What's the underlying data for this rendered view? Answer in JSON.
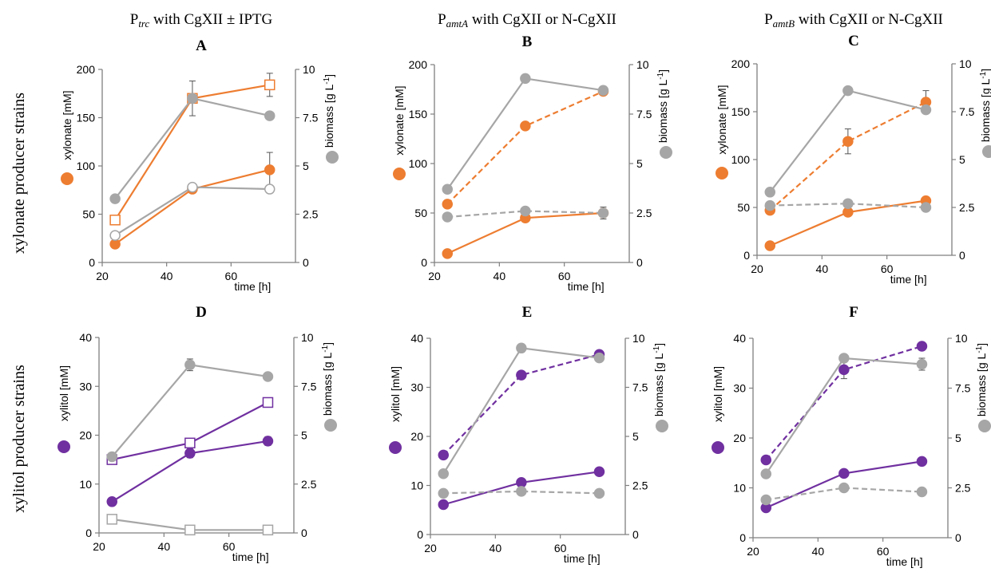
{
  "row_labels": [
    "xylonate producer strains",
    "xylitol producer strains"
  ],
  "column_titles": [
    {
      "base": "P",
      "sub": "trc",
      "rest": " with CgXII ± IPTG"
    },
    {
      "base": "P",
      "sub": "amtA",
      "rest": " with CgXII or N-CgXII"
    },
    {
      "base": "P",
      "sub": "amtB",
      "rest": " with CgXII or N-CgXII"
    }
  ],
  "colors": {
    "orange": "#ed7d31",
    "purple": "#7030a0",
    "gray": "#a6a6a6",
    "axis": "#7f7f7f"
  },
  "chart_data": [
    {
      "type": "line",
      "panel": "A",
      "xlabel": "time [h]",
      "ylabel": "xylonate [mM]",
      "y2label": "biomass [g L-1]",
      "xlim": [
        20,
        80
      ],
      "xticks": [
        "20",
        "40",
        "60"
      ],
      "ylim": [
        0,
        200
      ],
      "yticks": [
        "0",
        "50",
        "100",
        "150",
        "200"
      ],
      "y2lim": [
        0,
        10
      ],
      "y2ticks": [
        "0",
        "2.5",
        "5",
        "7.5",
        "10"
      ],
      "series": [
        {
          "axis": "left",
          "color": "orange",
          "dash": false,
          "marker": "circle",
          "fill": true,
          "x": [
            24,
            48,
            72
          ],
          "y": [
            19,
            76,
            96
          ],
          "err": [
            2,
            3,
            18
          ]
        },
        {
          "axis": "left",
          "color": "orange",
          "dash": false,
          "marker": "square",
          "fill": false,
          "x": [
            24,
            48,
            72
          ],
          "y": [
            44,
            170,
            184
          ],
          "err": [
            2,
            3,
            12
          ]
        },
        {
          "axis": "right",
          "color": "gray",
          "dash": false,
          "marker": "circle",
          "fill": true,
          "x": [
            24,
            48,
            72
          ],
          "y": [
            3.3,
            8.5,
            7.6
          ],
          "err": [
            0.1,
            0.9,
            0.1
          ]
        },
        {
          "axis": "right",
          "color": "gray",
          "dash": false,
          "marker": "circle",
          "fill": false,
          "x": [
            24,
            48,
            72
          ],
          "y": [
            1.4,
            3.9,
            3.8
          ],
          "err": [
            0.1,
            0.1,
            0.1
          ]
        }
      ]
    },
    {
      "type": "line",
      "panel": "B",
      "xlabel": "time [h]",
      "ylabel": "xylonate [mM]",
      "y2label": "biomass [g L-1]",
      "xlim": [
        20,
        80
      ],
      "xticks": [
        "20",
        "40",
        "60"
      ],
      "ylim": [
        0,
        200
      ],
      "yticks": [
        "0",
        "50",
        "100",
        "150",
        "200"
      ],
      "y2lim": [
        0,
        10
      ],
      "y2ticks": [
        "0",
        "2.5",
        "5",
        "7.5",
        "10"
      ],
      "series": [
        {
          "axis": "left",
          "color": "orange",
          "dash": false,
          "marker": "circle",
          "fill": true,
          "x": [
            24,
            48,
            72
          ],
          "y": [
            9,
            45,
            50
          ],
          "err": [
            1,
            2,
            3
          ]
        },
        {
          "axis": "left",
          "color": "orange",
          "dash": true,
          "marker": "circle",
          "fill": true,
          "x": [
            24,
            48,
            72
          ],
          "y": [
            59,
            138,
            173
          ],
          "err": [
            2,
            2,
            3
          ]
        },
        {
          "axis": "right",
          "color": "gray",
          "dash": false,
          "marker": "circle",
          "fill": true,
          "x": [
            24,
            48,
            72
          ],
          "y": [
            3.7,
            9.3,
            8.7
          ],
          "err": [
            0.1,
            0.1,
            0.2
          ]
        },
        {
          "axis": "right",
          "color": "gray",
          "dash": true,
          "marker": "circle",
          "fill": true,
          "x": [
            24,
            48,
            72
          ],
          "y": [
            2.3,
            2.6,
            2.5
          ],
          "err": [
            0.1,
            0.1,
            0.3
          ]
        }
      ]
    },
    {
      "type": "line",
      "panel": "C",
      "xlabel": "time [h]",
      "ylabel": "xylonate [mM]",
      "y2label": "biomass [g L-1]",
      "xlim": [
        20,
        80
      ],
      "xticks": [
        "20",
        "40",
        "60"
      ],
      "ylim": [
        0,
        200
      ],
      "yticks": [
        "0",
        "50",
        "100",
        "150",
        "200"
      ],
      "y2lim": [
        0,
        10
      ],
      "y2ticks": [
        "0",
        "2.5",
        "5",
        "7.5",
        "10"
      ],
      "series": [
        {
          "axis": "left",
          "color": "orange",
          "dash": false,
          "marker": "circle",
          "fill": true,
          "x": [
            24,
            48,
            72
          ],
          "y": [
            10,
            45,
            57
          ],
          "err": [
            1,
            2,
            2
          ]
        },
        {
          "axis": "left",
          "color": "orange",
          "dash": true,
          "marker": "circle",
          "fill": true,
          "x": [
            24,
            48,
            72
          ],
          "y": [
            47,
            119,
            160
          ],
          "err": [
            3,
            13,
            12
          ]
        },
        {
          "axis": "right",
          "color": "gray",
          "dash": false,
          "marker": "circle",
          "fill": true,
          "x": [
            24,
            48,
            72
          ],
          "y": [
            3.3,
            8.6,
            7.6
          ],
          "err": [
            0.1,
            0.1,
            0.2
          ]
        },
        {
          "axis": "right",
          "color": "gray",
          "dash": true,
          "marker": "circle",
          "fill": true,
          "x": [
            24,
            48,
            72
          ],
          "y": [
            2.6,
            2.7,
            2.5
          ],
          "err": [
            0.1,
            0.1,
            0.1
          ]
        }
      ]
    },
    {
      "type": "line",
      "panel": "D",
      "xlabel": "time [h]",
      "ylabel": "xylitol [mM]",
      "y2label": "biomass [g L-1]",
      "xlim": [
        20,
        80
      ],
      "xticks": [
        "20",
        "40",
        "60"
      ],
      "ylim": [
        0,
        40
      ],
      "yticks": [
        "0",
        "10",
        "20",
        "30",
        "40"
      ],
      "y2lim": [
        0,
        10
      ],
      "y2ticks": [
        "0",
        "2.5",
        "5",
        "7.5",
        "10"
      ],
      "series": [
        {
          "axis": "left",
          "color": "purple",
          "dash": false,
          "marker": "circle",
          "fill": true,
          "x": [
            24,
            48,
            72
          ],
          "y": [
            6.4,
            16.3,
            18.8
          ],
          "err": [
            0.3,
            0.9,
            0.9
          ]
        },
        {
          "axis": "left",
          "color": "purple",
          "dash": false,
          "marker": "square",
          "fill": false,
          "x": [
            24,
            48,
            72
          ],
          "y": [
            15.0,
            18.4,
            26.7
          ],
          "err": [
            0.3,
            0.5,
            0.5
          ]
        },
        {
          "axis": "right",
          "color": "gray",
          "dash": false,
          "marker": "circle",
          "fill": true,
          "x": [
            24,
            48,
            72
          ],
          "y": [
            3.9,
            8.6,
            8.0
          ],
          "err": [
            0.1,
            0.3,
            0.1
          ]
        },
        {
          "axis": "right",
          "color": "gray",
          "dash": false,
          "marker": "square",
          "fill": false,
          "x": [
            24,
            48,
            72
          ],
          "y": [
            0.7,
            0.15,
            0.15
          ],
          "err": [
            0.05,
            0.05,
            0.05
          ]
        }
      ]
    },
    {
      "type": "line",
      "panel": "E",
      "xlabel": "time [h]",
      "ylabel": "xylitol [mM]",
      "y2label": "biomass [g L-1]",
      "xlim": [
        20,
        80
      ],
      "xticks": [
        "20",
        "40",
        "60"
      ],
      "ylim": [
        0,
        40
      ],
      "yticks": [
        "0",
        "10",
        "20",
        "30",
        "40"
      ],
      "y2lim": [
        0,
        10
      ],
      "y2ticks": [
        "0",
        "2.5",
        "5",
        "7.5",
        "10"
      ],
      "series": [
        {
          "axis": "left",
          "color": "purple",
          "dash": false,
          "marker": "circle",
          "fill": true,
          "x": [
            24,
            48,
            72
          ],
          "y": [
            6.1,
            10.6,
            12.8
          ],
          "err": [
            0.3,
            0.3,
            0.3
          ]
        },
        {
          "axis": "left",
          "color": "purple",
          "dash": true,
          "marker": "circle",
          "fill": true,
          "x": [
            24,
            48,
            72
          ],
          "y": [
            16.2,
            32.5,
            36.7
          ],
          "err": [
            0.5,
            0.5,
            0.7
          ]
        },
        {
          "axis": "right",
          "color": "gray",
          "dash": false,
          "marker": "circle",
          "fill": true,
          "x": [
            24,
            48,
            72
          ],
          "y": [
            3.1,
            9.5,
            9.0
          ],
          "err": [
            0.1,
            0.2,
            0.2
          ]
        },
        {
          "axis": "right",
          "color": "gray",
          "dash": true,
          "marker": "circle",
          "fill": true,
          "x": [
            24,
            48,
            72
          ],
          "y": [
            2.1,
            2.2,
            2.1
          ],
          "err": [
            0.05,
            0.05,
            0.05
          ]
        }
      ]
    },
    {
      "type": "line",
      "panel": "F",
      "xlabel": "time [h]",
      "ylabel": "xylitol [mM]",
      "y2label": "biomass [g L-1]",
      "xlim": [
        20,
        80
      ],
      "xticks": [
        "20",
        "40",
        "60"
      ],
      "ylim": [
        0,
        40
      ],
      "yticks": [
        "0",
        "10",
        "20",
        "30",
        "40"
      ],
      "y2lim": [
        0,
        10
      ],
      "y2ticks": [
        "0",
        "2.5",
        "5",
        "7.5",
        "10"
      ],
      "series": [
        {
          "axis": "left",
          "color": "purple",
          "dash": false,
          "marker": "circle",
          "fill": true,
          "x": [
            24,
            48,
            72
          ],
          "y": [
            6.0,
            12.9,
            15.3
          ],
          "err": [
            0.3,
            0.3,
            0.3
          ]
        },
        {
          "axis": "left",
          "color": "purple",
          "dash": true,
          "marker": "circle",
          "fill": true,
          "x": [
            24,
            48,
            72
          ],
          "y": [
            15.6,
            33.7,
            38.4
          ],
          "err": [
            0.5,
            1.8,
            0.5
          ]
        },
        {
          "axis": "right",
          "color": "gray",
          "dash": false,
          "marker": "circle",
          "fill": true,
          "x": [
            24,
            48,
            72
          ],
          "y": [
            3.2,
            9.0,
            8.7
          ],
          "err": [
            0.1,
            0.2,
            0.3
          ]
        },
        {
          "axis": "right",
          "color": "gray",
          "dash": true,
          "marker": "circle",
          "fill": true,
          "x": [
            24,
            48,
            72
          ],
          "y": [
            1.9,
            2.5,
            2.3
          ],
          "err": [
            0.05,
            0.1,
            0.05
          ]
        }
      ]
    }
  ]
}
